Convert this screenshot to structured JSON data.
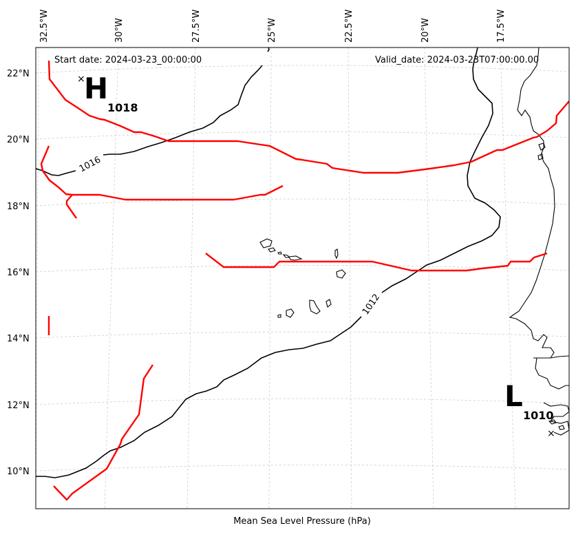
{
  "map": {
    "start_date": "Start date: 2024-03-23_00:00:00",
    "valid_date": "Valid_date: 2024-03-23T07:00:00.00",
    "caption": "Mean Sea Level Pressure (hPa)",
    "lon_labels": [
      "32.5°W",
      "30°W",
      "27.5°W",
      "25°W",
      "22.5°W",
      "20°W",
      "17.5°W"
    ],
    "lat_labels": [
      "22°N",
      "20°N",
      "18°N",
      "16°N",
      "14°N",
      "12°N",
      "10°N"
    ],
    "high": {
      "letter": "H",
      "value": "1018"
    },
    "low": {
      "letter": "L",
      "value": "1010"
    },
    "isobars": [
      {
        "label": "1016"
      },
      {
        "label": "1012"
      }
    ],
    "colors": {
      "isobar": "#000000",
      "front": "#ff0000",
      "grid": "#cccccc",
      "coast": "#000000"
    }
  }
}
